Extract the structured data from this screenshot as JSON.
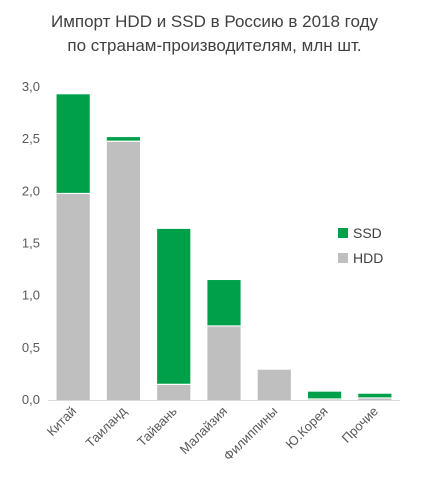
{
  "chart_data": {
    "type": "bar",
    "stacked": true,
    "title": "Импорт HDD и SSD в Россию в 2018 году",
    "subtitle": "по странам-производителям, млн шт.",
    "categories": [
      "Китай",
      "Таиланд",
      "Тайвань",
      "Малайзия",
      "Филиппины",
      "Ю.Корея",
      "Прочие"
    ],
    "series": [
      {
        "name": "HDD",
        "color": "#bfbfbf",
        "values": [
          1.98,
          2.48,
          0.15,
          0.71,
          0.29,
          0.01,
          0.02
        ]
      },
      {
        "name": "SSD",
        "color": "#00a04a",
        "values": [
          0.95,
          0.04,
          1.49,
          0.44,
          0.0,
          0.07,
          0.04
        ]
      }
    ],
    "ylim": [
      0,
      3.0
    ],
    "yticks": [
      "0,0",
      "0,5",
      "1,0",
      "1,5",
      "2,0",
      "2,5",
      "3,0"
    ],
    "ytick_values": [
      0,
      0.5,
      1.0,
      1.5,
      2.0,
      2.5,
      3.0
    ],
    "grid": false,
    "legend_position": "right",
    "legend_order": [
      "SSD",
      "HDD"
    ],
    "xlabel": "",
    "ylabel": ""
  }
}
